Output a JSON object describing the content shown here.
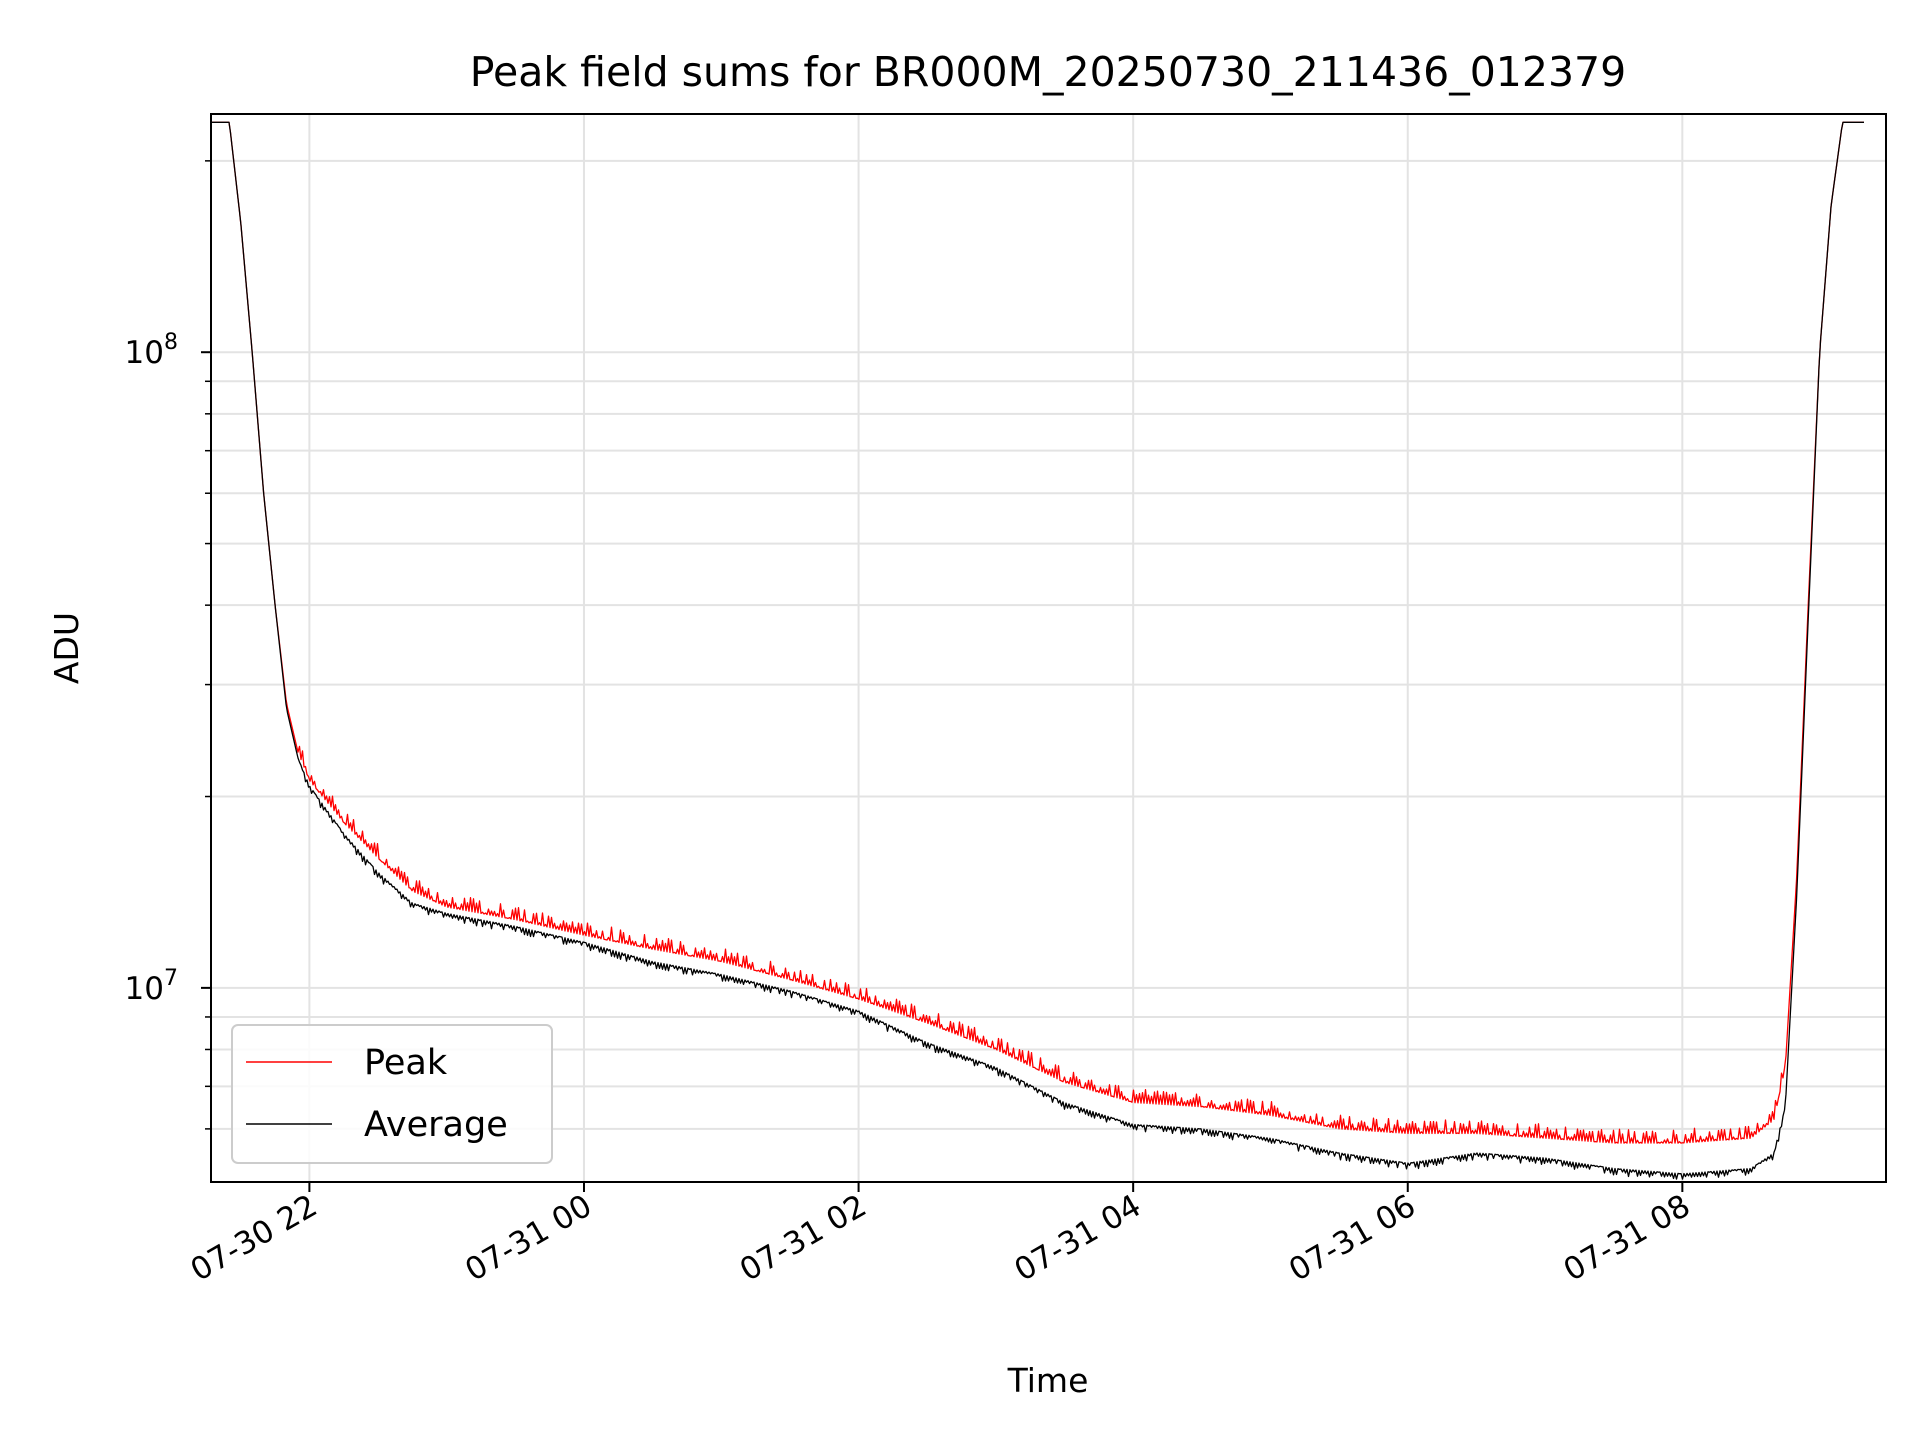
{
  "chart_data": {
    "type": "line",
    "title": "Peak field sums for BR000M_20250730_211436_012379",
    "xlabel": "Time",
    "ylabel": "ADU",
    "x_range": [
      "2025-07-30T21:17:00",
      "2025-07-31T09:29:00"
    ],
    "y_scale": "log",
    "ylim": [
      4950000,
      237000000
    ],
    "grid": true,
    "legend_position": "lower left",
    "x_tick_labels": [
      "07-30 22",
      "07-31 00",
      "07-31 02",
      "07-31 04",
      "07-31 06",
      "07-31 08"
    ],
    "x_tick_values": [
      "2025-07-30T22:00:00",
      "2025-07-31T00:00:00",
      "2025-07-31T02:00:00",
      "2025-07-31T04:00:00",
      "2025-07-31T06:00:00",
      "2025-07-31T08:00:00"
    ],
    "y_major_ticks": [
      {
        "value": 10000000,
        "base": "10",
        "exp": "7"
      },
      {
        "value": 100000000,
        "base": "10",
        "exp": "8"
      }
    ],
    "y_minor_ticks": [
      6000000,
      7000000,
      8000000,
      9000000,
      20000000,
      30000000,
      40000000,
      50000000,
      60000000,
      70000000,
      80000000,
      90000000,
      200000000
    ],
    "series": [
      {
        "name": "Peak",
        "color": "#ff0000",
        "x": [
          "2025-07-30T21:17:00",
          "2025-07-30T21:25:00",
          "2025-07-30T21:30:00",
          "2025-07-30T21:35:00",
          "2025-07-30T21:40:00",
          "2025-07-30T21:45:00",
          "2025-07-30T21:50:00",
          "2025-07-30T21:55:00",
          "2025-07-30T22:00:00",
          "2025-07-30T22:15:00",
          "2025-07-30T22:30:00",
          "2025-07-30T22:45:00",
          "2025-07-30T23:00:00",
          "2025-07-30T23:30:00",
          "2025-07-31T00:00:00",
          "2025-07-31T00:30:00",
          "2025-07-31T01:00:00",
          "2025-07-31T01:30:00",
          "2025-07-31T02:00:00",
          "2025-07-31T02:30:00",
          "2025-07-31T03:00:00",
          "2025-07-31T03:30:00",
          "2025-07-31T04:00:00",
          "2025-07-31T04:30:00",
          "2025-07-31T05:00:00",
          "2025-07-31T05:30:00",
          "2025-07-31T06:00:00",
          "2025-07-31T06:30:00",
          "2025-07-31T07:00:00",
          "2025-07-31T07:30:00",
          "2025-07-31T08:00:00",
          "2025-07-31T08:30:00",
          "2025-07-31T08:40:00",
          "2025-07-31T08:45:00",
          "2025-07-31T08:50:00",
          "2025-07-31T08:55:00",
          "2025-07-31T09:00:00",
          "2025-07-31T09:05:00",
          "2025-07-31T09:10:00",
          "2025-07-31T09:20:00"
        ],
        "values": [
          230000000,
          230000000,
          160000000,
          100000000,
          60000000,
          40000000,
          28000000,
          23500000,
          21200000,
          18200000,
          16000000,
          14200000,
          13400000,
          12800000,
          12100000,
          11500000,
          11000000,
          10300000,
          9600000,
          8800000,
          8000000,
          7100000,
          6600000,
          6500000,
          6300000,
          6000000,
          5900000,
          5900000,
          5800000,
          5700000,
          5700000,
          5800000,
          6200000,
          7500000,
          15000000,
          40000000,
          100000000,
          170000000,
          230000000,
          230000000
        ]
      },
      {
        "name": "Average",
        "color": "#000000",
        "x": [
          "2025-07-30T21:17:00",
          "2025-07-30T21:25:00",
          "2025-07-30T21:30:00",
          "2025-07-30T21:35:00",
          "2025-07-30T21:40:00",
          "2025-07-30T21:45:00",
          "2025-07-30T21:50:00",
          "2025-07-30T21:55:00",
          "2025-07-30T22:00:00",
          "2025-07-30T22:15:00",
          "2025-07-30T22:30:00",
          "2025-07-30T22:45:00",
          "2025-07-30T23:00:00",
          "2025-07-30T23:30:00",
          "2025-07-31T00:00:00",
          "2025-07-31T00:30:00",
          "2025-07-31T01:00:00",
          "2025-07-31T01:30:00",
          "2025-07-31T02:00:00",
          "2025-07-31T02:30:00",
          "2025-07-31T03:00:00",
          "2025-07-31T03:30:00",
          "2025-07-31T04:00:00",
          "2025-07-31T04:30:00",
          "2025-07-31T05:00:00",
          "2025-07-31T05:30:00",
          "2025-07-31T06:00:00",
          "2025-07-31T06:30:00",
          "2025-07-31T07:00:00",
          "2025-07-31T07:30:00",
          "2025-07-31T08:00:00",
          "2025-07-31T08:30:00",
          "2025-07-31T08:40:00",
          "2025-07-31T08:45:00",
          "2025-07-31T08:50:00",
          "2025-07-31T08:55:00",
          "2025-07-31T09:00:00",
          "2025-07-31T09:05:00",
          "2025-07-31T09:10:00",
          "2025-07-31T09:20:00"
        ],
        "values": [
          230000000,
          230000000,
          160000000,
          100000000,
          60000000,
          40000000,
          27500000,
          23000000,
          20800000,
          17500000,
          15200000,
          13600000,
          13100000,
          12500000,
          11800000,
          11000000,
          10500000,
          9900000,
          9200000,
          8200000,
          7500000,
          6600000,
          6100000,
          6000000,
          5800000,
          5500000,
          5300000,
          5500000,
          5400000,
          5200000,
          5100000,
          5200000,
          5500000,
          6500000,
          14000000,
          38000000,
          100000000,
          170000000,
          230000000,
          230000000
        ]
      }
    ]
  }
}
